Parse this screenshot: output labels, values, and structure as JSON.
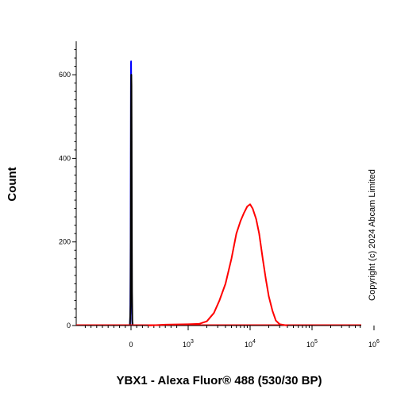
{
  "chart_data": {
    "type": "line",
    "xlabel": "YBX1 - Alexa Fluor® 488 (530/30 BP)",
    "ylabel": "Count",
    "copyright": "Copyright (c) 2024  Abcam Limited",
    "x_scale": "biexponential",
    "y_ticks": [
      0,
      200,
      400,
      600
    ],
    "ylim": [
      0,
      680
    ],
    "x_ticks": [
      {
        "value": 0,
        "base": "0",
        "exp": ""
      },
      {
        "value": 1000,
        "base": "10",
        "exp": "3"
      },
      {
        "value": 10000,
        "base": "10",
        "exp": "4"
      },
      {
        "value": 100000,
        "base": "10",
        "exp": "5"
      },
      {
        "value": 1000000,
        "base": "10",
        "exp": "6"
      }
    ],
    "grid": false,
    "series": [
      {
        "color": "#0000ff",
        "points": [
          [
            -20,
            0
          ],
          [
            -12,
            30
          ],
          [
            -7,
            200
          ],
          [
            -4,
            420
          ],
          [
            -2,
            590
          ],
          [
            0,
            628
          ],
          [
            1,
            632
          ],
          [
            3,
            600
          ],
          [
            5,
            500
          ],
          [
            8,
            300
          ],
          [
            12,
            100
          ],
          [
            18,
            15
          ],
          [
            25,
            0
          ]
        ]
      },
      {
        "color": "#000000",
        "points": [
          [
            -18,
            0
          ],
          [
            -8,
            50
          ],
          [
            -3,
            260
          ],
          [
            1,
            520
          ],
          [
            4,
            590
          ],
          [
            6,
            600
          ],
          [
            8,
            575
          ],
          [
            11,
            450
          ],
          [
            14,
            260
          ],
          [
            18,
            80
          ],
          [
            24,
            10
          ],
          [
            30,
            0
          ]
        ]
      },
      {
        "color": "#ff0000",
        "points": [
          [
            300,
            0
          ],
          [
            600,
            2
          ],
          [
            1000,
            3
          ],
          [
            1500,
            4
          ],
          [
            2000,
            10
          ],
          [
            2600,
            30
          ],
          [
            3200,
            60
          ],
          [
            4000,
            100
          ],
          [
            5000,
            160
          ],
          [
            6000,
            220
          ],
          [
            7000,
            250
          ],
          [
            8000,
            270
          ],
          [
            9000,
            285
          ],
          [
            10000,
            290
          ],
          [
            11000,
            280
          ],
          [
            12500,
            255
          ],
          [
            14000,
            220
          ],
          [
            16000,
            160
          ],
          [
            18000,
            110
          ],
          [
            20000,
            70
          ],
          [
            23000,
            35
          ],
          [
            26000,
            12
          ],
          [
            30000,
            3
          ],
          [
            40000,
            0
          ]
        ]
      }
    ]
  }
}
